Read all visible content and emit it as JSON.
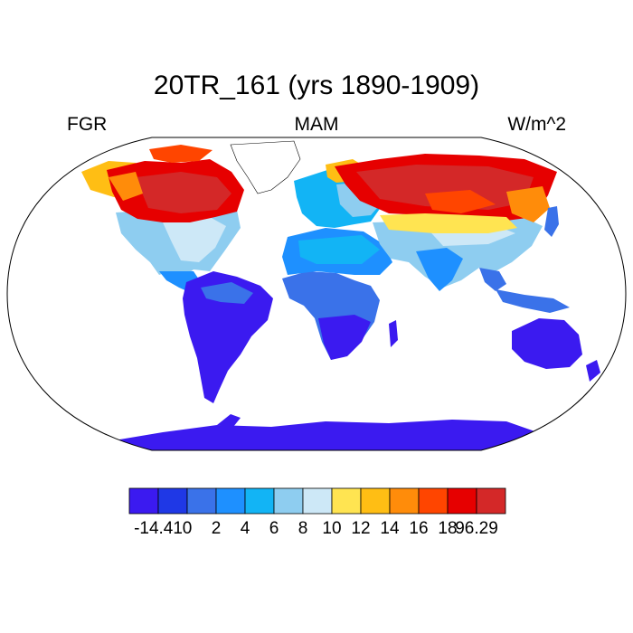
{
  "title": "20TR_161 (yrs 1890-1909)",
  "left_label": "FGR",
  "center_label": "MAM",
  "right_label": "W/m^2",
  "colorbar": {
    "colors": [
      "#3b1af0",
      "#1f38e6",
      "#3a72e9",
      "#1e90ff",
      "#12b4f5",
      "#8ecdf0",
      "#cde8f7",
      "#ffe451",
      "#ffbe14",
      "#ff8c0a",
      "#ff4500",
      "#e60000",
      "#d42828"
    ],
    "tick_labels": [
      "-14.41",
      "0",
      "2",
      "4",
      "6",
      "8",
      "10",
      "12",
      "14",
      "16",
      "18",
      "96.29"
    ]
  },
  "chart_data": {
    "type": "heatmap",
    "projection": "Robinson (global)",
    "variable": "FGR",
    "season": "MAM",
    "units": "W/m^2",
    "value_range": [
      -14.41,
      96.29
    ],
    "levels": [
      0,
      2,
      4,
      6,
      8,
      10,
      12,
      14,
      16,
      18
    ],
    "regions": [
      {
        "name": "Northern North America / Canada",
        "level": "18-96.29"
      },
      {
        "name": "Eastern United States",
        "level": "8-12"
      },
      {
        "name": "Greenland",
        "level": "no data"
      },
      {
        "name": "South America",
        "level": "-14.41-0"
      },
      {
        "name": "Northern Africa",
        "level": "4-6"
      },
      {
        "name": "Southern Africa",
        "level": "-14.41-0"
      },
      {
        "name": "Northern Eurasia / Siberia",
        "level": "18-96.29"
      },
      {
        "name": "Southern Asia",
        "level": "4-8"
      },
      {
        "name": "Australia",
        "level": "-14.41-0"
      },
      {
        "name": "Antarctica",
        "level": "-14.41-0"
      }
    ]
  }
}
